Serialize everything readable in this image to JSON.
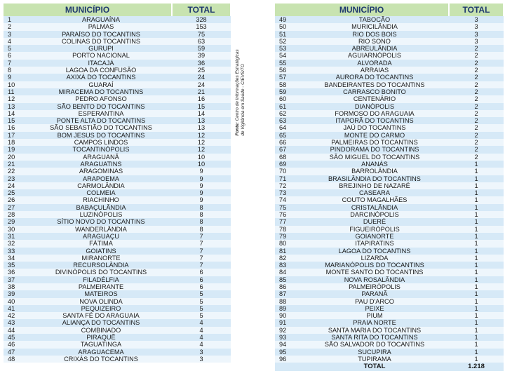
{
  "headers": {
    "municipio": "MUNICÍPIO",
    "total": "TOTAL"
  },
  "source": {
    "label": "Fonte:",
    "line1": "Centro de Informações Estratégicas",
    "line2": "de Vigilância em Saúde - CIEVS/TO"
  },
  "left_rows": [
    [
      "1",
      "ARAGUAÍNA",
      "328"
    ],
    [
      "2",
      "PALMAS",
      "153"
    ],
    [
      "3",
      "PARAÍSO DO TOCANTINS",
      "75"
    ],
    [
      "4",
      "COLINAS DO TOCANTINS",
      "63"
    ],
    [
      "5",
      "GURUPI",
      "59"
    ],
    [
      "6",
      "PORTO NACIONAL",
      "39"
    ],
    [
      "7",
      "ITACAJÁ",
      "36"
    ],
    [
      "8",
      "LAGOA DA CONFUSÃO",
      "25"
    ],
    [
      "9",
      "AXIXÁ DO TOCANTINS",
      "24"
    ],
    [
      "10",
      "GUARAÍ",
      "24"
    ],
    [
      "11",
      "MIRACEMA DO TOCANTINS",
      "21"
    ],
    [
      "12",
      "PEDRO AFONSO",
      "16"
    ],
    [
      "13",
      "SÃO BENTO DO TOCANTINS",
      "15"
    ],
    [
      "14",
      "ESPERANTINA",
      "14"
    ],
    [
      "15",
      "PONTE ALTA DO TOCANTINS",
      "13"
    ],
    [
      "16",
      "SÃO SEBASTIÃO DO TOCANTINS",
      "13"
    ],
    [
      "17",
      "BOM JESUS DO TOCANTINS",
      "12"
    ],
    [
      "18",
      "CAMPOS LINDOS",
      "12"
    ],
    [
      "19",
      "TOCANTINÓPOLIS",
      "12"
    ],
    [
      "20",
      "ARAGUANÃ",
      "10"
    ],
    [
      "21",
      "ARAGUATINS",
      "10"
    ],
    [
      "22",
      "ARAGOMINAS",
      "9"
    ],
    [
      "23",
      "ARAPOEMA",
      "9"
    ],
    [
      "24",
      "CARMOLÂNDIA",
      "9"
    ],
    [
      "25",
      "COLMEIA",
      "9"
    ],
    [
      "26",
      "RIACHINHO",
      "9"
    ],
    [
      "27",
      "BABAÇULÂNDIA",
      "8"
    ],
    [
      "28",
      "LUZINÓPOLIS",
      "8"
    ],
    [
      "29",
      "SÍTIO NOVO DO TOCANTINS",
      "8"
    ],
    [
      "30",
      "WANDERLÂNDIA",
      "8"
    ],
    [
      "31",
      "ARAGUAÇU",
      "7"
    ],
    [
      "32",
      "FÁTIMA",
      "7"
    ],
    [
      "33",
      "GOIATINS",
      "7"
    ],
    [
      "34",
      "MIRANORTE",
      "7"
    ],
    [
      "35",
      "RECURSOLÂNDIA",
      "7"
    ],
    [
      "36",
      "DIVINÓPOLIS DO TOCANTINS",
      "6"
    ],
    [
      "37",
      "FILADÉLFIA",
      "6"
    ],
    [
      "38",
      "PALMEIRANTE",
      "6"
    ],
    [
      "39",
      "MATEIROS",
      "5"
    ],
    [
      "40",
      "NOVA OLINDA",
      "5"
    ],
    [
      "41",
      "PEQUIZEIRO",
      "5"
    ],
    [
      "42",
      "SANTA FÉ DO ARAGUAIA",
      "5"
    ],
    [
      "43",
      "ALIANÇA DO TOCANTINS",
      "4"
    ],
    [
      "44",
      "COMBINADO",
      "4"
    ],
    [
      "45",
      "PIRAQUÊ",
      "4"
    ],
    [
      "46",
      "TAGUATINGA",
      "4"
    ],
    [
      "47",
      "ARAGUACEMA",
      "3"
    ],
    [
      "48",
      "CRIXÁS DO TOCANTINS",
      "3"
    ]
  ],
  "right_rows": [
    [
      "49",
      "TABOCÃO",
      "3"
    ],
    [
      "50",
      "MURICILÂNDIA",
      "3"
    ],
    [
      "51",
      "RIO DOS BOIS",
      "3"
    ],
    [
      "52",
      "RIO SONO",
      "3"
    ],
    [
      "53",
      "ABREULÂNDIA",
      "2"
    ],
    [
      "54",
      "AGUIARNÓPOLIS",
      "2"
    ],
    [
      "55",
      "ALVORADA",
      "2"
    ],
    [
      "56",
      "ARRAIAS",
      "2"
    ],
    [
      "57",
      "AURORA DO TOCANTINS",
      "2"
    ],
    [
      "58",
      "BANDEIRANTES DO TOCANTINS",
      "2"
    ],
    [
      "59",
      "CARRASCO BONITO",
      "2"
    ],
    [
      "60",
      "CENTENÁRIO",
      "2"
    ],
    [
      "61",
      "DIANÓPOLIS",
      "2"
    ],
    [
      "62",
      "FORMOSO DO ARAGUAIA",
      "2"
    ],
    [
      "63",
      "ITAPORÃ DO TOCANTINS",
      "2"
    ],
    [
      "64",
      "JAÚ DO TOCANTINS",
      "2"
    ],
    [
      "65",
      "MONTE DO CARMO",
      "2"
    ],
    [
      "66",
      "PALMEIRAS DO TOCANTINS",
      "2"
    ],
    [
      "67",
      "PINDORAMA DO TOCANTINS",
      "2"
    ],
    [
      "68",
      "SÃO MIGUEL DO TOCANTINS",
      "2"
    ],
    [
      "69",
      "ANANÁS",
      "1"
    ],
    [
      "70",
      "BARROLÂNDIA",
      "1"
    ],
    [
      "71",
      "BRASILÂNDIA DO TOCANTINS",
      "1"
    ],
    [
      "72",
      "BREJINHO DE NAZARÉ",
      "1"
    ],
    [
      "73",
      "CASEARA",
      "1"
    ],
    [
      "74",
      "COUTO MAGALHÃES",
      "1"
    ],
    [
      "75",
      "CRISTALÂNDIA",
      "1"
    ],
    [
      "76",
      "DARCINÓPOLIS",
      "1"
    ],
    [
      "77",
      "DUERÉ",
      "1"
    ],
    [
      "78",
      "FIGUEIRÓPOLIS",
      "1"
    ],
    [
      "79",
      "GOIANORTE",
      "1"
    ],
    [
      "80",
      "ITAPIRATINS",
      "1"
    ],
    [
      "81",
      "LAGOA DO TOCANTINS",
      "1"
    ],
    [
      "82",
      "LIZARDA",
      "1"
    ],
    [
      "83",
      "MARIANÓPOLIS DO TOCANTINS",
      "1"
    ],
    [
      "84",
      "MONTE SANTO DO TOCANTINS",
      "1"
    ],
    [
      "85",
      "NOVA ROSALÂNDIA",
      "1"
    ],
    [
      "86",
      "PALMEIRÓPOLIS",
      "1"
    ],
    [
      "87",
      "PARANÃ",
      "1"
    ],
    [
      "88",
      "PAU D'ARCO",
      "1"
    ],
    [
      "89",
      "PEIXE",
      "1"
    ],
    [
      "90",
      "PIUM",
      "1"
    ],
    [
      "91",
      "PRAIA NORTE",
      "1"
    ],
    [
      "92",
      "SANTA MARIA DO TOCANTINS",
      "1"
    ],
    [
      "93",
      "SANTA RITA DO TOCANTINS",
      "1"
    ],
    [
      "94",
      "SÃO SALVADOR DO TOCANTINS",
      "1"
    ],
    [
      "95",
      "SUCUPIRA",
      "1"
    ],
    [
      "96",
      "TUPIRAMA",
      "1"
    ]
  ],
  "footer": {
    "label": "TOTAL",
    "value": "1.218"
  }
}
